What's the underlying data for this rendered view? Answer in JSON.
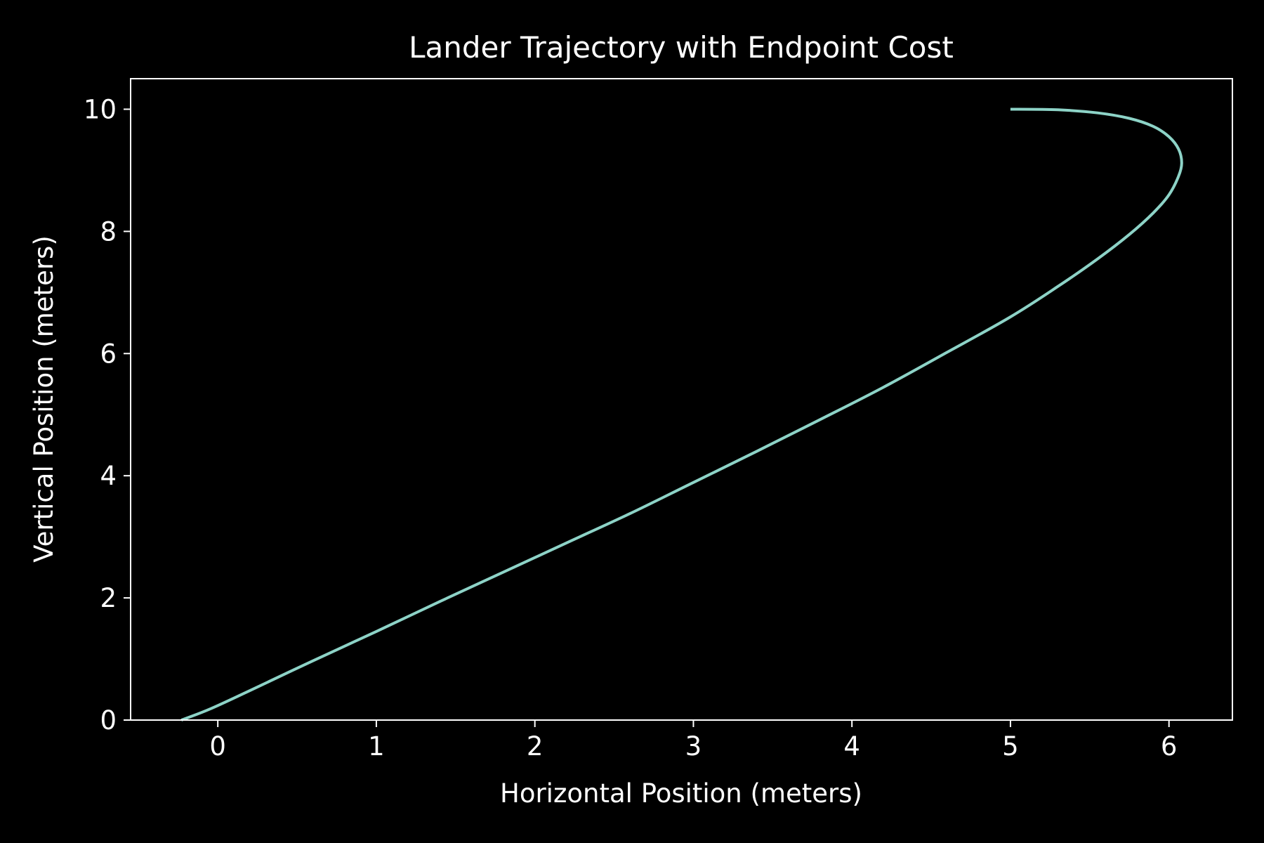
{
  "chart_data": {
    "type": "line",
    "title": "Lander Trajectory with Endpoint Cost",
    "xlabel": "Horizontal Position (meters)",
    "ylabel": "Vertical Position (meters)",
    "xlim": [
      -0.55,
      6.4
    ],
    "ylim": [
      0,
      10.5
    ],
    "xticks": [
      0,
      1,
      2,
      3,
      4,
      5,
      6
    ],
    "yticks": [
      0,
      2,
      4,
      6,
      8,
      10
    ],
    "grid": false,
    "legend": "none",
    "colors": {
      "background": "#000000",
      "axes": "#ffffff",
      "line": "#8dd3c7"
    },
    "series": [
      {
        "x": [
          5.0,
          5.3,
          5.55,
          5.75,
          5.9,
          6.0,
          6.06,
          6.08,
          6.06,
          6.0,
          5.9,
          5.75,
          5.55,
          5.3,
          5.0,
          4.6,
          4.2,
          3.8,
          3.4,
          3.0,
          2.6,
          2.2,
          1.8,
          1.4,
          1.0,
          0.6,
          0.2,
          -0.05,
          -0.23
        ],
        "y": [
          10.0,
          9.99,
          9.94,
          9.85,
          9.72,
          9.55,
          9.35,
          9.12,
          8.9,
          8.6,
          8.3,
          7.95,
          7.55,
          7.1,
          6.6,
          6.02,
          5.45,
          4.92,
          4.4,
          3.89,
          3.38,
          2.9,
          2.42,
          1.94,
          1.45,
          0.97,
          0.48,
          0.18,
          0.0
        ]
      }
    ]
  }
}
